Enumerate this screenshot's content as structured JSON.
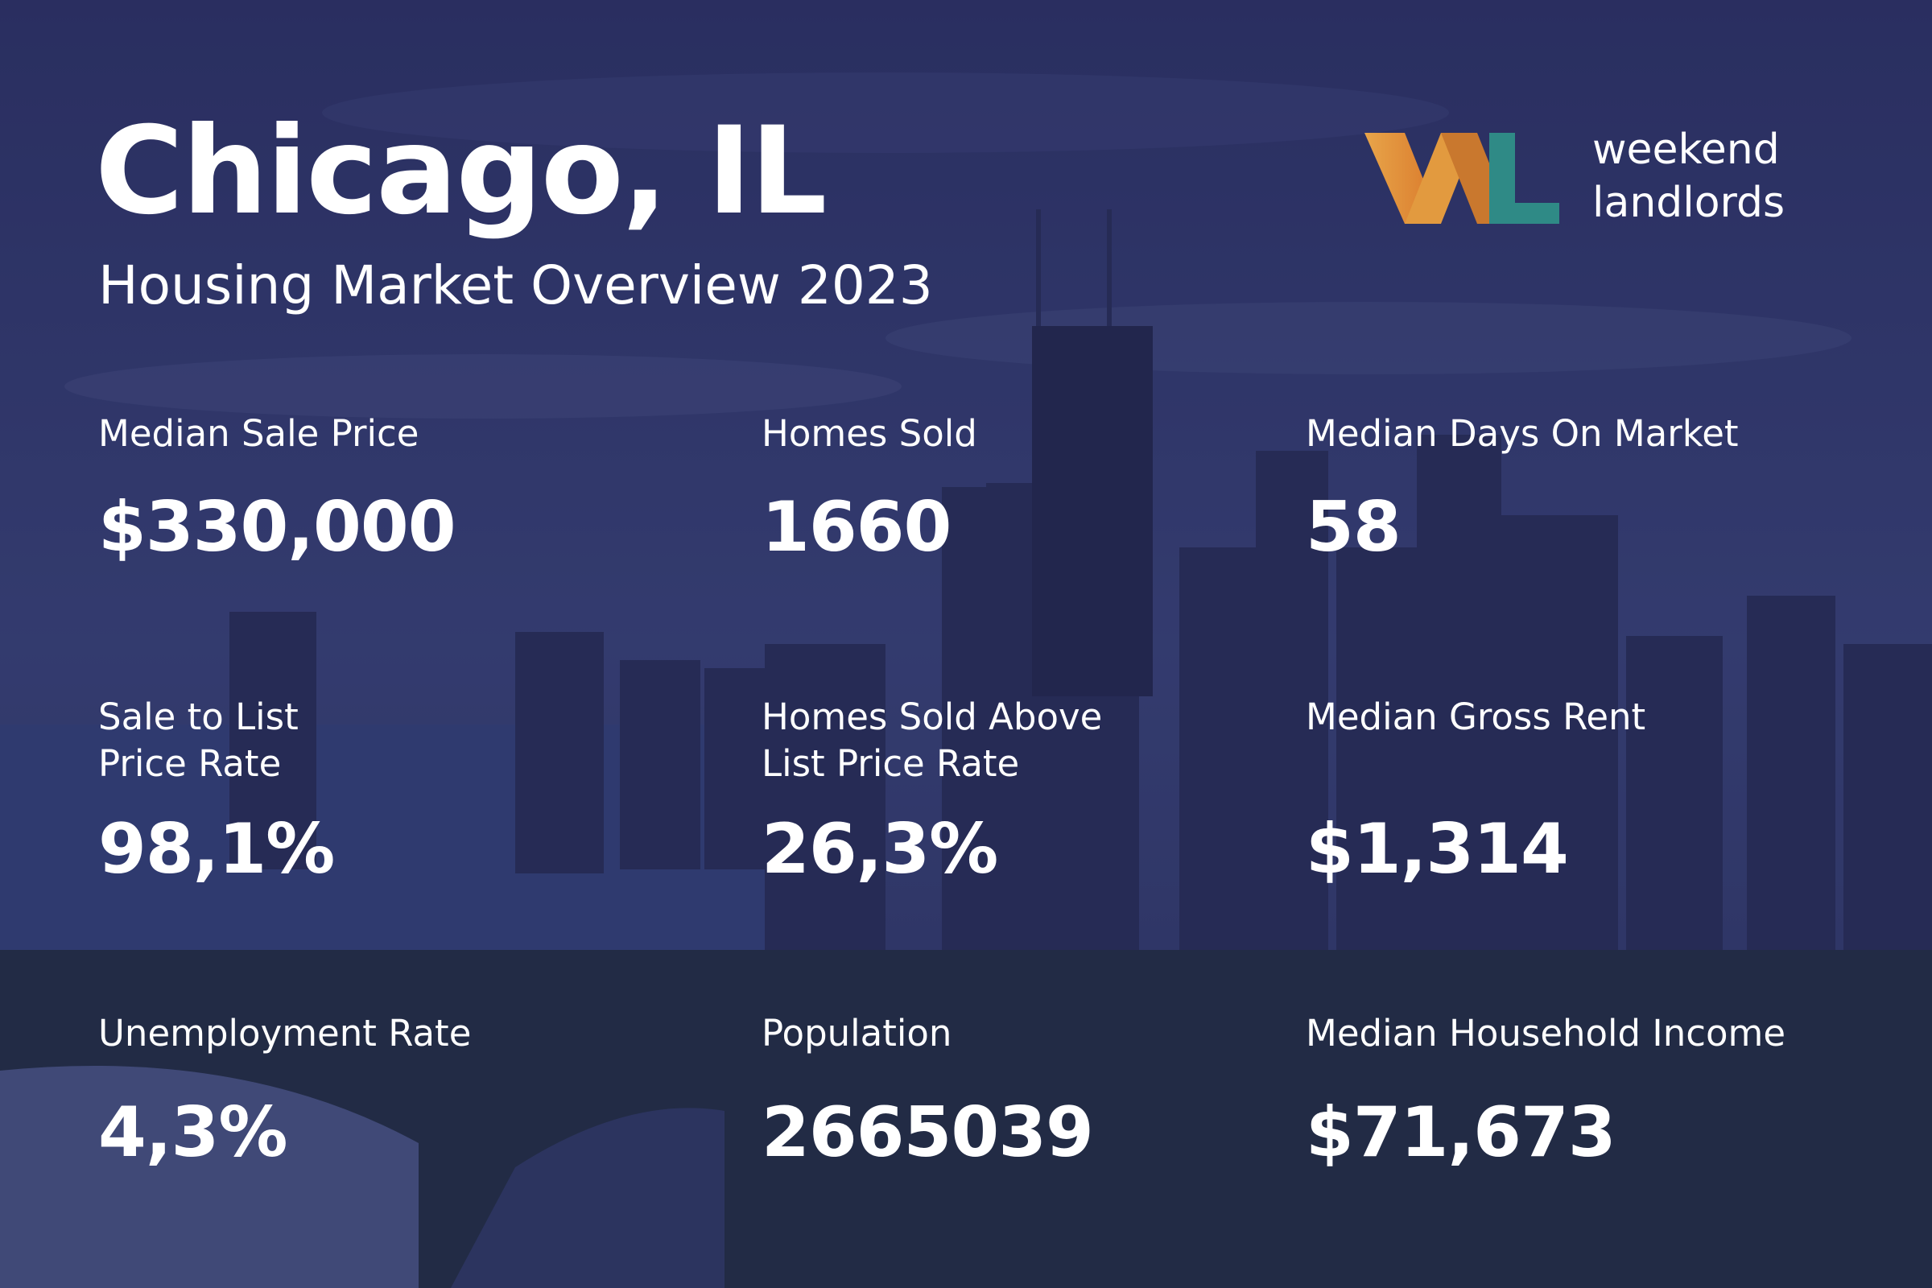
{
  "header": {
    "title": "Chicago, IL",
    "subtitle": "Housing Market Overview 2023"
  },
  "logo": {
    "line1": "weekend",
    "line2": "landlords"
  },
  "stats": [
    {
      "label": [
        "Median Sale Price"
      ],
      "value": "$330,000"
    },
    {
      "label": [
        "Homes Sold"
      ],
      "value": "1660"
    },
    {
      "label": [
        "Median Days On Market"
      ],
      "value": "58"
    },
    {
      "label": [
        "Sale to List",
        "Price Rate"
      ],
      "value": "98,1%"
    },
    {
      "label": [
        "Homes Sold Above",
        "List Price Rate"
      ],
      "value": "26,3%"
    },
    {
      "label": [
        "Median Gross Rent"
      ],
      "value": "$1,314"
    },
    {
      "label": [
        "Unemployment Rate"
      ],
      "value": "4,3%"
    },
    {
      "label": [
        "Population"
      ],
      "value": "2665039"
    },
    {
      "label": [
        "Median Household Income"
      ],
      "value": "$71,673"
    }
  ]
}
